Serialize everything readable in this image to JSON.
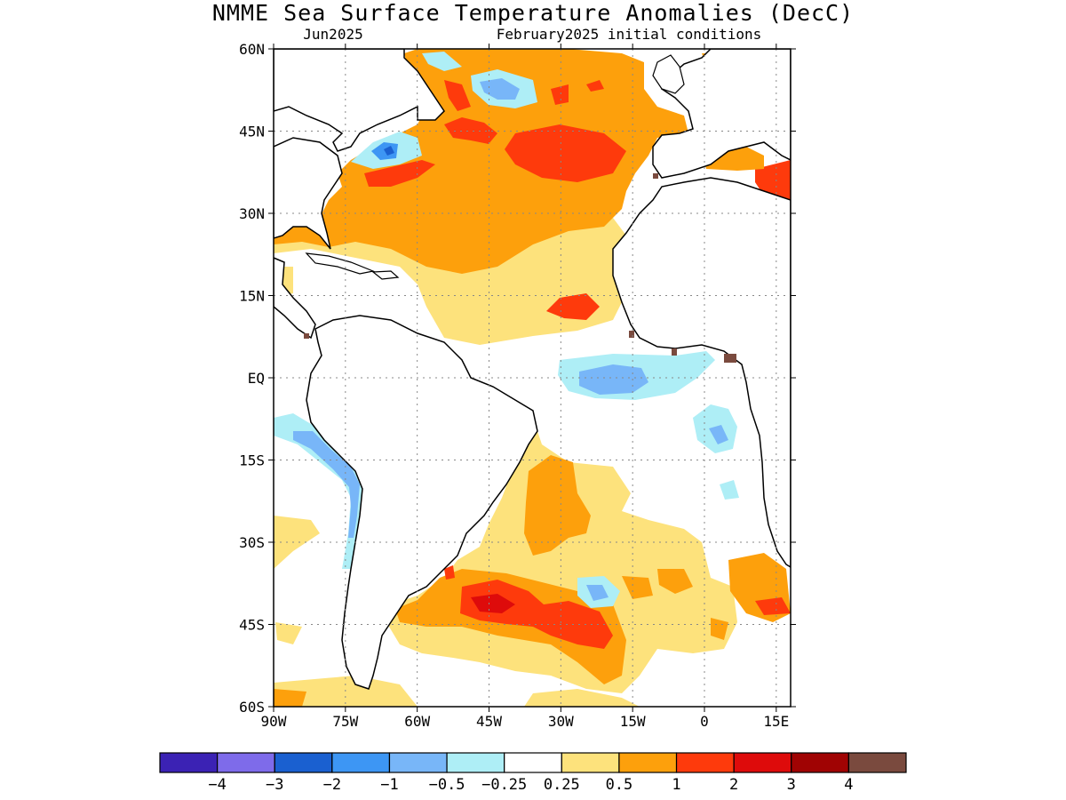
{
  "title": "NMME Sea Surface Temperature Anomalies (DecC)",
  "subtitle_left": "Jun2025",
  "subtitle_right": "February2025 initial conditions",
  "map": {
    "lat_labels": [
      "60N",
      "45N",
      "30N",
      "15N",
      "EQ",
      "15S",
      "30S",
      "45S",
      "60S"
    ],
    "lon_labels": [
      "90W",
      "75W",
      "60W",
      "45W",
      "30W",
      "15W",
      "0",
      "15E"
    ],
    "lat_range": [
      -60,
      60
    ],
    "lon_range": [
      -90,
      18
    ],
    "grid": "dotted",
    "land_color": "#ffffff",
    "coastline_color": "#000000"
  },
  "colorbar": {
    "colors": [
      "#3b22b4",
      "#7e6bea",
      "#1a60d0",
      "#3d96f4",
      "#78b6f8",
      "#aeeef6",
      "#ffffff",
      "#fde27c",
      "#fda00c",
      "#fe3a0c",
      "#de0b0b",
      "#a00303",
      "#7a4a3e"
    ],
    "labels": [
      "−4",
      "−3",
      "−2",
      "−1",
      "−0.5",
      "−0.25",
      "0.25",
      "0.5",
      "1",
      "2",
      "3",
      "4"
    ]
  }
}
